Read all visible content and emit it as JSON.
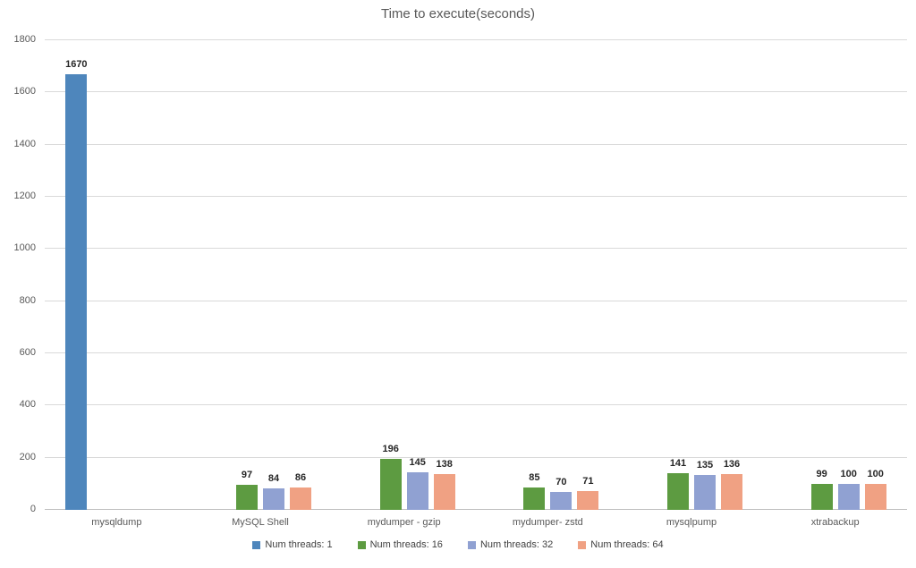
{
  "title": "Time to execute(seconds)",
  "chart_data": {
    "type": "bar",
    "title": "Time to execute(seconds)",
    "categories": [
      "mysqldump",
      "MySQL Shell",
      "mydumper - gzip",
      "mydumper- zstd",
      "mysqlpump",
      "xtrabackup"
    ],
    "series": [
      {
        "name": "Num threads: 1",
        "color": "#4E86BC",
        "values": [
          1670,
          null,
          null,
          null,
          null,
          null
        ]
      },
      {
        "name": "Num threads: 16",
        "color": "#5D9B41",
        "values": [
          null,
          97,
          196,
          85,
          141,
          99
        ]
      },
      {
        "name": "Num threads: 32",
        "color": "#90A1D2",
        "values": [
          null,
          84,
          145,
          70,
          135,
          100
        ]
      },
      {
        "name": "Num threads: 64",
        "color": "#F0A183",
        "values": [
          null,
          86,
          138,
          71,
          136,
          100
        ]
      }
    ],
    "xlabel": "",
    "ylabel": "",
    "ylim": [
      0,
      1800
    ],
    "ytick_interval": 200,
    "yticks": [
      0,
      200,
      400,
      600,
      800,
      1000,
      1200,
      1400,
      1600,
      1800
    ],
    "grid": true,
    "data_labels": true,
    "legend_position": "bottom"
  },
  "colors": {
    "title_text": "#595959",
    "axis_text": "#595959",
    "gridline": "#D9D9D9",
    "axis_line": "#BFBFBF",
    "data_label_text": "#262626",
    "background": "#FFFFFF"
  }
}
